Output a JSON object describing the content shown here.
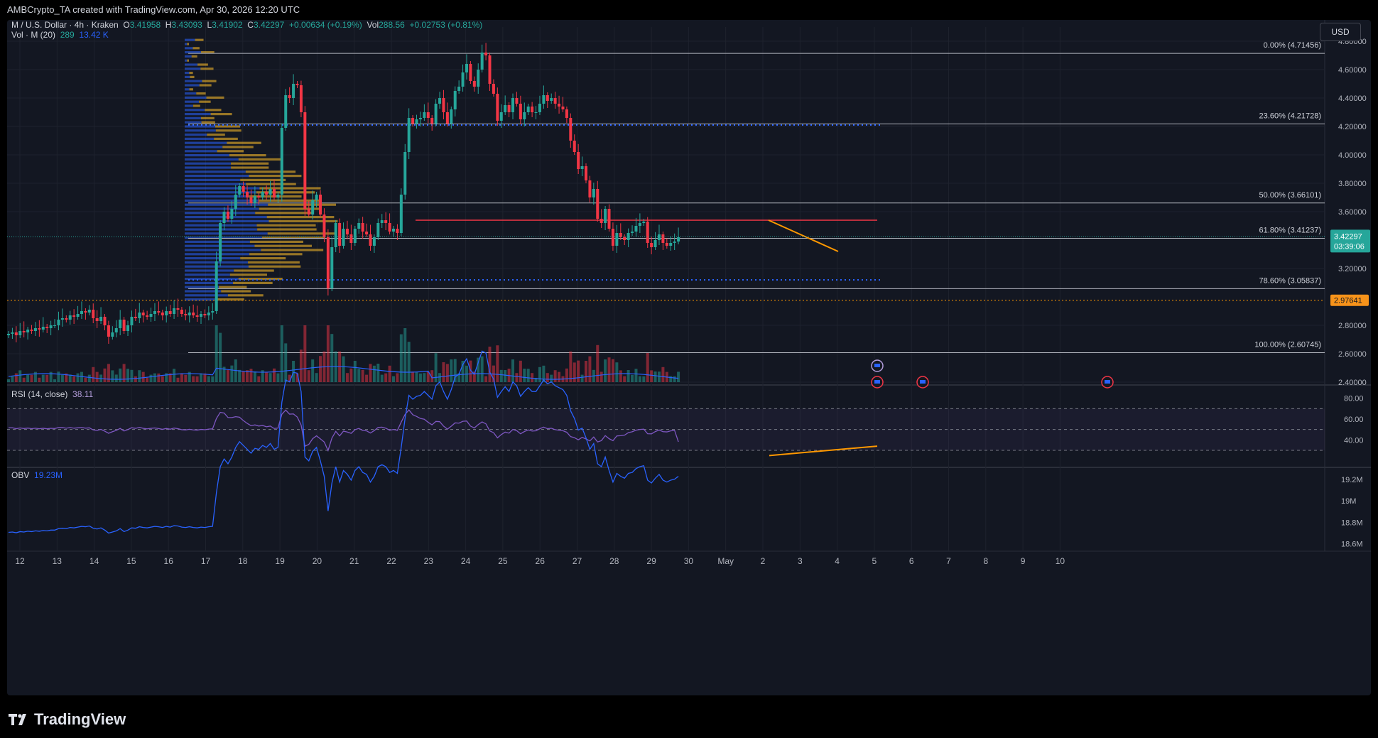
{
  "header": {
    "attribution": "AMBCrypto_TA created with TradingView.com, Apr 30, 2026 12:20 UTC"
  },
  "legend": {
    "symbol": "M / U.S. Dollar · 4h · Kraken",
    "o_label": "O",
    "o": "3.41958",
    "h_label": "H",
    "h": "3.43093",
    "l_label": "L",
    "l": "3.41902",
    "c_label": "C",
    "c": "3.42297",
    "change": "+0.00634 (+0.19%)",
    "vol_label": "Vol",
    "vol": "288.56",
    "vol_change": "+0.02753 (+0.81%)",
    "vol_ma_label": "Vol · M (20)",
    "vol_ma_a": "289",
    "vol_ma_b": "13.42 K"
  },
  "currency_button": "USD",
  "price_axis": {
    "labels": [
      "4.80000",
      "4.60000",
      "4.40000",
      "4.20000",
      "4.00000",
      "3.80000",
      "3.60000",
      "3.20000",
      "2.80000",
      "2.60000",
      "2.40000"
    ],
    "current_price": "3.42297",
    "countdown": "03:39:06",
    "marked_level": "2.97641"
  },
  "fib_levels": [
    {
      "label": "0.00% (4.71456)",
      "value": 4.71456
    },
    {
      "label": "23.60% (4.21728)",
      "value": 4.21728
    },
    {
      "label": "50.00% (3.66101)",
      "value": 3.66101
    },
    {
      "label": "61.80% (3.41237)",
      "value": 3.41237
    },
    {
      "label": "78.60% (3.05837)",
      "value": 3.05837
    },
    {
      "label": "100.00% (2.60745)",
      "value": 2.60745
    }
  ],
  "rsi": {
    "label": "RSI (14, close)",
    "value": "38.11",
    "axis_labels": [
      "80.00",
      "60.00",
      "40.00"
    ]
  },
  "obv": {
    "label": "OBV",
    "value": "19.23M",
    "axis_labels": [
      "19.2M",
      "19M",
      "18.8M",
      "18.6M"
    ]
  },
  "time_axis": [
    "12",
    "13",
    "14",
    "15",
    "16",
    "17",
    "18",
    "19",
    "20",
    "21",
    "22",
    "23",
    "24",
    "25",
    "26",
    "27",
    "28",
    "29",
    "30",
    "May",
    "2",
    "3",
    "4",
    "5",
    "6",
    "7",
    "8",
    "9",
    "10"
  ],
  "colors": {
    "up": "#26a69a",
    "down": "#f23645",
    "background": "#131722",
    "grid": "#1e222d",
    "fib": "#b2b5be",
    "rsi": "#7e57c2",
    "obv": "#2962ff",
    "trendline": "#ff9800",
    "resistance": "#f23645"
  },
  "footer": {
    "brand": "TradingView"
  },
  "chart_data": {
    "type": "candlestick",
    "symbol": "M / U.S. Dollar",
    "interval": "4h",
    "exchange": "Kraken",
    "ylim": [
      2.4,
      4.9
    ],
    "closes": [
      2.74,
      2.75,
      2.73,
      2.76,
      2.75,
      2.77,
      2.76,
      2.78,
      2.77,
      2.79,
      2.78,
      2.8,
      2.8,
      2.84,
      2.85,
      2.84,
      2.87,
      2.86,
      2.88,
      2.9,
      2.89,
      2.91,
      2.85,
      2.83,
      2.86,
      2.8,
      2.72,
      2.75,
      2.78,
      2.84,
      2.76,
      2.8,
      2.86,
      2.85,
      2.89,
      2.87,
      2.86,
      2.88,
      2.9,
      2.89,
      2.87,
      2.9,
      2.88,
      2.92,
      2.91,
      2.88,
      2.87,
      2.89,
      2.87,
      2.86,
      2.88,
      2.87,
      2.89,
      2.9,
      3.25,
      3.52,
      3.6,
      3.55,
      3.62,
      3.72,
      3.78,
      3.74,
      3.7,
      3.66,
      3.71,
      3.7,
      3.74,
      3.72,
      3.76,
      3.7,
      3.72,
      4.19,
      4.42,
      4.4,
      4.5,
      4.49,
      4.3,
      3.62,
      3.58,
      3.68,
      3.72,
      3.58,
      3.42,
      3.06,
      3.35,
      3.52,
      3.36,
      3.48,
      3.44,
      3.38,
      3.48,
      3.52,
      3.46,
      3.44,
      3.36,
      3.42,
      3.52,
      3.54,
      3.52,
      3.46,
      3.48,
      3.45,
      3.72,
      4.02,
      4.26,
      4.22,
      4.25,
      4.26,
      4.3,
      4.26,
      4.22,
      4.36,
      4.4,
      4.3,
      4.22,
      4.32,
      4.45,
      4.48,
      4.58,
      4.64,
      4.52,
      4.48,
      4.6,
      4.72,
      4.7,
      4.5,
      4.43,
      4.24,
      4.3,
      4.35,
      4.3,
      4.4,
      4.36,
      4.25,
      4.3,
      4.34,
      4.3,
      4.3,
      4.36,
      4.42,
      4.38,
      4.4,
      4.36,
      4.34,
      4.32,
      4.26,
      4.1,
      4.02,
      3.9,
      3.92,
      3.82,
      3.7,
      3.76,
      3.55,
      3.52,
      3.62,
      3.48,
      3.36,
      3.45,
      3.42,
      3.4,
      3.45,
      3.46,
      3.5,
      3.52,
      3.53,
      3.38,
      3.35,
      3.4,
      3.44,
      3.38,
      3.36,
      3.38,
      3.39,
      3.42
    ],
    "fib_retracement": {
      "0.00%": 4.71456,
      "23.60%": 4.21728,
      "50.00%": 3.66101,
      "61.80%": 3.41237,
      "78.60%": 3.05837,
      "100.00%": 2.60745
    },
    "last_price": 3.42297,
    "marked_level": 2.97641,
    "resistance_level": 3.54,
    "support_level": 3.12,
    "rsi_14": 38.11,
    "rsi_levels": [
      30,
      50,
      70
    ],
    "obv_last": "19.23M"
  }
}
